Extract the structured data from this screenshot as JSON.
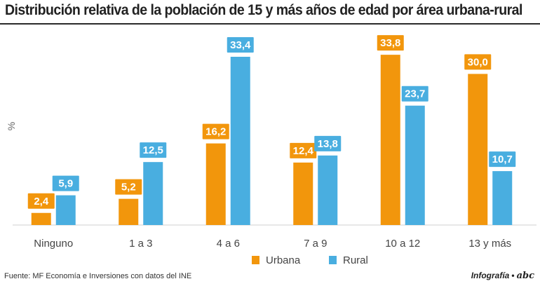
{
  "title": "Distribución relativa de la población de 15 y más años de edad por área urbana-rural",
  "source": "Fuente: MF Economía e Inversiones con datos del INE",
  "credit": {
    "label": "Infografía",
    "separator": "•",
    "brand": "abc"
  },
  "colors": {
    "urbana": "#F2960C",
    "rural": "#49AEE0",
    "axis": "#cfcfcf",
    "text": "#444444"
  },
  "chart_data": {
    "type": "bar",
    "categories": [
      "Ninguno",
      "1 a 3",
      "4 a 6",
      "7 a 9",
      "10 a 12",
      "13 y más"
    ],
    "series": [
      {
        "name": "Urbana",
        "values": [
          2.4,
          5.2,
          16.2,
          12.4,
          33.8,
          30.0
        ],
        "labels": [
          "2,4",
          "5,2",
          "16,2",
          "12,4",
          "33,8",
          "30,0"
        ]
      },
      {
        "name": "Rural",
        "values": [
          5.9,
          12.5,
          33.4,
          13.8,
          23.7,
          10.7
        ],
        "labels": [
          "5,9",
          "12,5",
          "33,4",
          "13,8",
          "23,7",
          "10,7"
        ]
      }
    ],
    "ylabel": "%",
    "xlabel": "",
    "ylim": [
      0,
      35
    ],
    "grid": false,
    "legend": "bottom-right"
  }
}
